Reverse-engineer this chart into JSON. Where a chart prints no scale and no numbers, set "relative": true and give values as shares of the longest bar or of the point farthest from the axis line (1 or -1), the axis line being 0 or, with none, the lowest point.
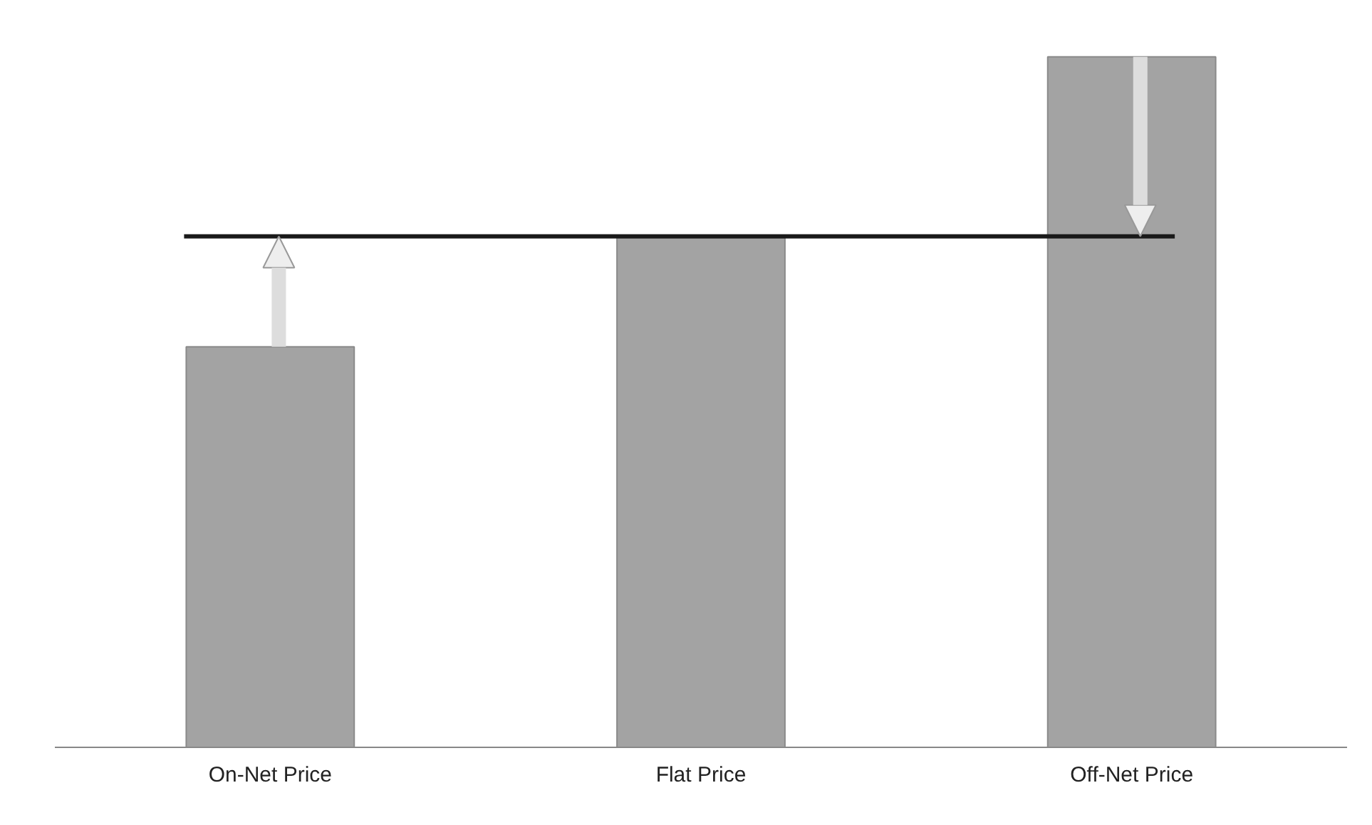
{
  "chart_data": {
    "type": "bar",
    "relative": true,
    "categories": [
      "On-Net Price",
      "Flat Price",
      "Off-Net Price"
    ],
    "values": [
      0.58,
      0.74,
      1.0
    ],
    "color": "#a3a3a3",
    "ref_lines": [
      {
        "axis": "y",
        "value": 0.74,
        "color": "#1a1a1a",
        "line_style": "solid"
      }
    ],
    "grid": false
  }
}
